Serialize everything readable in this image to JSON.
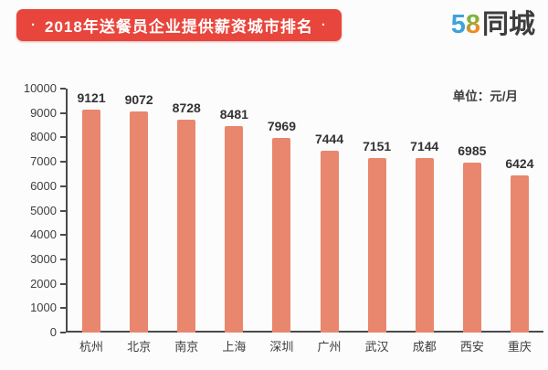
{
  "header": {
    "title": "2018年送餐员企业提供薪资城市排名",
    "title_dot": "·",
    "banner_color": "#e8463c",
    "logo": {
      "part1": "5",
      "part2": "8",
      "part3": "同城"
    }
  },
  "chart": {
    "unit_label": "单位：元/月"
  },
  "chart_data": {
    "type": "bar",
    "title": "2018年送餐员企业提供薪资城市排名",
    "unit": "元/月",
    "categories": [
      "杭州",
      "北京",
      "南京",
      "上海",
      "深圳",
      "广州",
      "武汉",
      "成都",
      "西安",
      "重庆"
    ],
    "values": [
      9121,
      9072,
      8728,
      8481,
      7969,
      7444,
      7151,
      7144,
      6985,
      6424
    ],
    "xlabel": "",
    "ylabel": "",
    "ylim": [
      0,
      10000
    ],
    "ytick_step": 1000,
    "grid": false,
    "legend": "none",
    "bar_color": "#e8876e",
    "axis_color": "#4a4a4a",
    "value_labels": true
  }
}
